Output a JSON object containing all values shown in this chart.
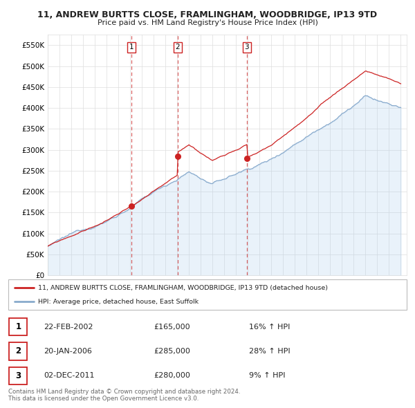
{
  "title_line1": "11, ANDREW BURTTS CLOSE, FRAMLINGHAM, WOODBRIDGE, IP13 9TD",
  "title_line2": "Price paid vs. HM Land Registry's House Price Index (HPI)",
  "ylim": [
    0,
    575000
  ],
  "yticks": [
    0,
    50000,
    100000,
    150000,
    200000,
    250000,
    300000,
    350000,
    400000,
    450000,
    500000,
    550000
  ],
  "ytick_labels": [
    "£0",
    "£50K",
    "£100K",
    "£150K",
    "£200K",
    "£250K",
    "£300K",
    "£350K",
    "£400K",
    "£450K",
    "£500K",
    "£550K"
  ],
  "hpi_color": "#aaccee",
  "hpi_line_color": "#88aacc",
  "price_color": "#cc2222",
  "vline_color": "#cc2222",
  "purchases": [
    {
      "label": "1",
      "year": 2002.13,
      "price": 165000
    },
    {
      "label": "2",
      "year": 2006.05,
      "price": 285000
    },
    {
      "label": "3",
      "year": 2011.92,
      "price": 280000
    }
  ],
  "legend_property_label": "11, ANDREW BURTTS CLOSE, FRAMLINGHAM, WOODBRIDGE, IP13 9TD (detached house)",
  "legend_hpi_label": "HPI: Average price, detached house, East Suffolk",
  "table_rows": [
    [
      "1",
      "22-FEB-2002",
      "£165,000",
      "16% ↑ HPI"
    ],
    [
      "2",
      "20-JAN-2006",
      "£285,000",
      "28% ↑ HPI"
    ],
    [
      "3",
      "02-DEC-2011",
      "£280,000",
      "9% ↑ HPI"
    ]
  ],
  "footnote_line1": "Contains HM Land Registry data © Crown copyright and database right 2024.",
  "footnote_line2": "This data is licensed under the Open Government Licence v3.0.",
  "bg_color": "#ffffff",
  "grid_color": "#dddddd"
}
